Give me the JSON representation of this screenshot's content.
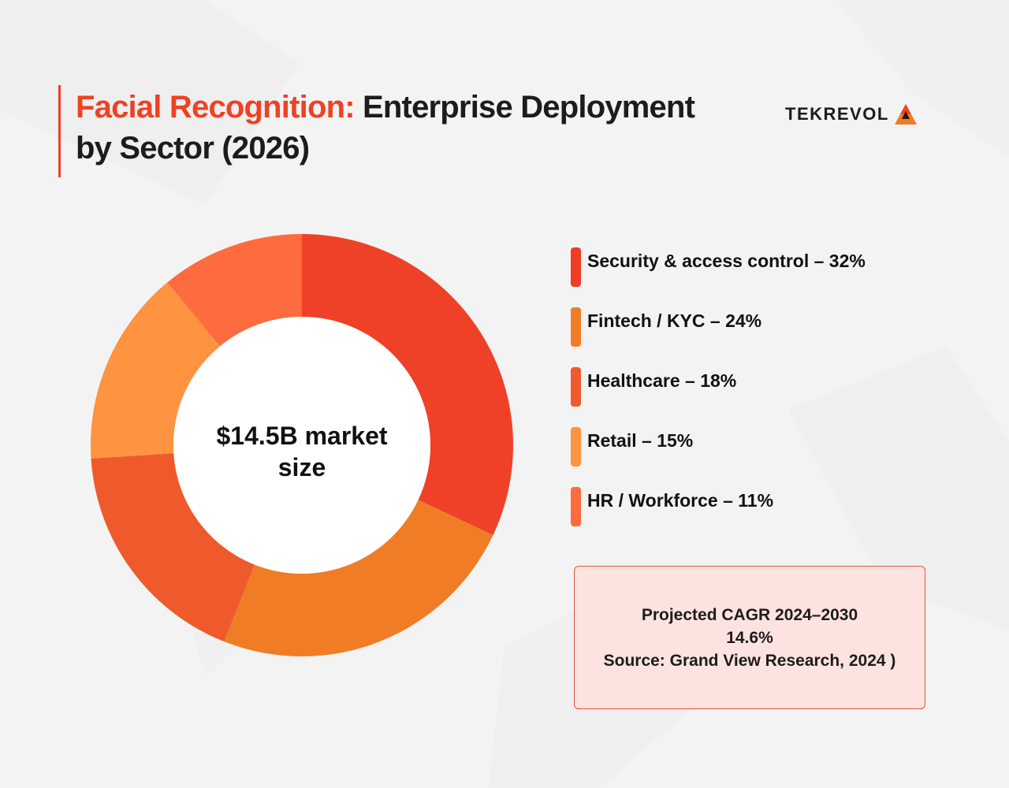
{
  "header": {
    "title_accent": "Facial Recognition:",
    "title_rest": " Enterprise Deployment by Sector (2026)"
  },
  "brand": {
    "logo_text": "TEKREVOL",
    "logo_icon": "triangle-mark-icon"
  },
  "colors": {
    "accent": "#ef4123",
    "note_bg": "#fde3e0",
    "note_border": "#e8543a"
  },
  "chart_data": {
    "type": "pie",
    "donut": true,
    "title": "",
    "center_label": "$14.5B market size",
    "slices": [
      {
        "label": "Security & access control",
        "value": 32,
        "color": "#ef4127",
        "legend_color": "#ee3d23"
      },
      {
        "label": "Fintech / KYC",
        "value": 24,
        "color": "#f07c26",
        "legend_color": "#f07c26"
      },
      {
        "label": "Healthcare",
        "value": 18,
        "color": "#ee5a2b",
        "legend_color": "#ee5a2b"
      },
      {
        "label": "Retail",
        "value": 15,
        "color": "#fe9340",
        "legend_color": "#fe9340"
      },
      {
        "label": "HR / Workforce",
        "value": 11,
        "color": "#fe6b3e",
        "legend_color": "#fe6b3e"
      }
    ],
    "legend_entries": [
      "Security & access control – 32%",
      "Fintech / KYC – 24%",
      "Healthcare – 18%",
      "Retail – 15%",
      "HR / Workforce – 11%"
    ],
    "legend_position": "right"
  },
  "note": {
    "line1": "Projected CAGR 2024–2030",
    "line2": "14.6%",
    "line3": "Source: Grand View Research, 2024 )"
  }
}
